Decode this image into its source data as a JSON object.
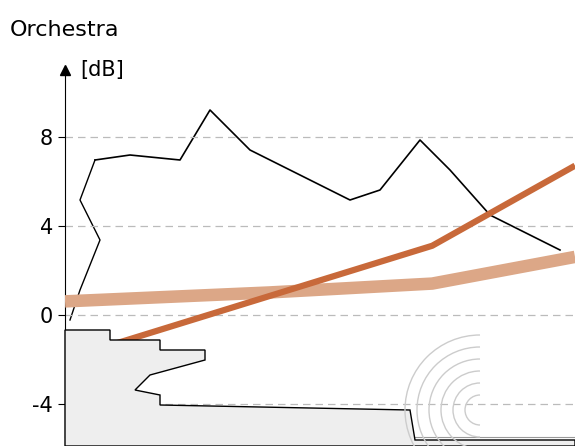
{
  "chart_data": {
    "type": "line",
    "title": "Orchestra",
    "y_label": "[dB]",
    "xlim": [
      0,
      1
    ],
    "ylim": [
      -5.5,
      11
    ],
    "yticks": [
      -4,
      0,
      4,
      8
    ],
    "grid": true,
    "tick_labels": "y",
    "series": [
      {
        "color": "#dca787",
        "x": [
          0,
          0.4,
          0.72,
          1.0
        ],
        "values": [
          0.6,
          1.0,
          1.4,
          2.6
        ],
        "line_style": "solid"
      },
      {
        "color": "#c8693a",
        "x": [
          0,
          0.72,
          1.0
        ],
        "values": [
          -2.0,
          3.1,
          6.7
        ],
        "line_style": "solid"
      }
    ]
  }
}
